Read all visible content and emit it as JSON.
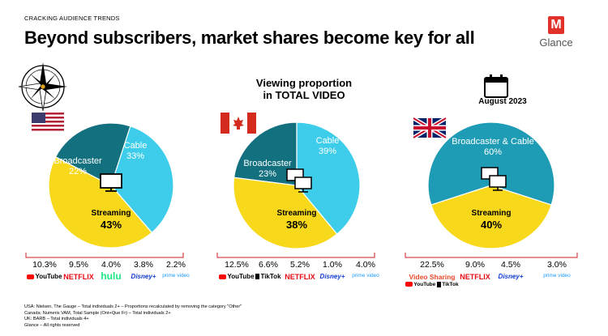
{
  "header": {
    "kicker": "CRACKING AUDIENCE TRENDS",
    "title": "Beyond subscribers, market shares become key for all",
    "logo_text": "Glance",
    "logo_letter": "M"
  },
  "center_title_line1": "Viewing proportion",
  "center_title_line2": "in TOTAL VIDEO",
  "uk_date_label": "August 2023",
  "colors": {
    "broadcaster": "#12707f",
    "cable": "#3dcdea",
    "streaming": "#f7d81b",
    "uk_main": "#1f9cb5",
    "youtube_red": "#ff0000",
    "netflix_red": "#e50914",
    "hulu_green": "#1ce783",
    "disney_blue": "#113ccf",
    "prime_blue": "#1a98ff",
    "video_sharing_red": "#e8492a"
  },
  "chart_data": [
    {
      "type": "pie",
      "country": "USA",
      "slices": [
        {
          "label": "Cable",
          "value": 33,
          "display": "33%"
        },
        {
          "label": "Streaming",
          "value": 43,
          "display": "43%"
        },
        {
          "label": "Broadcaster",
          "value": 22,
          "display": "22%"
        }
      ],
      "platforms": [
        {
          "name": "YouTube",
          "value": "10.3%"
        },
        {
          "name": "NETFLIX",
          "value": "9.5%"
        },
        {
          "name": "hulu",
          "value": "4.0%"
        },
        {
          "name": "Disney+",
          "value": "3.8%"
        },
        {
          "name": "prime video",
          "value": "2.2%"
        }
      ]
    },
    {
      "type": "pie",
      "country": "Canada",
      "slices": [
        {
          "label": "Cable",
          "value": 39,
          "display": "39%"
        },
        {
          "label": "Streaming",
          "value": 38,
          "display": "38%"
        },
        {
          "label": "Broadcaster",
          "value": 23,
          "display": "23%"
        }
      ],
      "platforms": [
        {
          "name": "YouTube",
          "value": "12.5%"
        },
        {
          "name": "TikTok",
          "value": "6.6%"
        },
        {
          "name": "NETFLIX",
          "value": "5.2%"
        },
        {
          "name": "Disney+",
          "value": "1.0%"
        },
        {
          "name": "prime video",
          "value": "4.0%"
        }
      ]
    },
    {
      "type": "pie",
      "country": "UK",
      "slices": [
        {
          "label": "Broadcaster & Cable",
          "value": 60,
          "display": "60%"
        },
        {
          "label": "Streaming",
          "value": 40,
          "display": "40%"
        }
      ],
      "platforms": [
        {
          "name": "Video Sharing",
          "value": "22.5%",
          "sub": [
            "YouTube",
            "TikTok"
          ]
        },
        {
          "name": "NETFLIX",
          "value": "9.0%"
        },
        {
          "name": "Disney+",
          "value": "4.5%"
        },
        {
          "name": "prime video",
          "value": "3.0%"
        }
      ]
    }
  ],
  "footer": {
    "lines": [
      "USA: Nielsen, The Gauge – Total individuals 2+ – Proportions recalculated by removing the category \"Other\"",
      "Canada: Numeris VAM, Total Sample (Ont+Que Fr) – Total individuals 2+",
      "UK: BARB – Total individuals 4+",
      "Glance – All rights reserved"
    ]
  }
}
